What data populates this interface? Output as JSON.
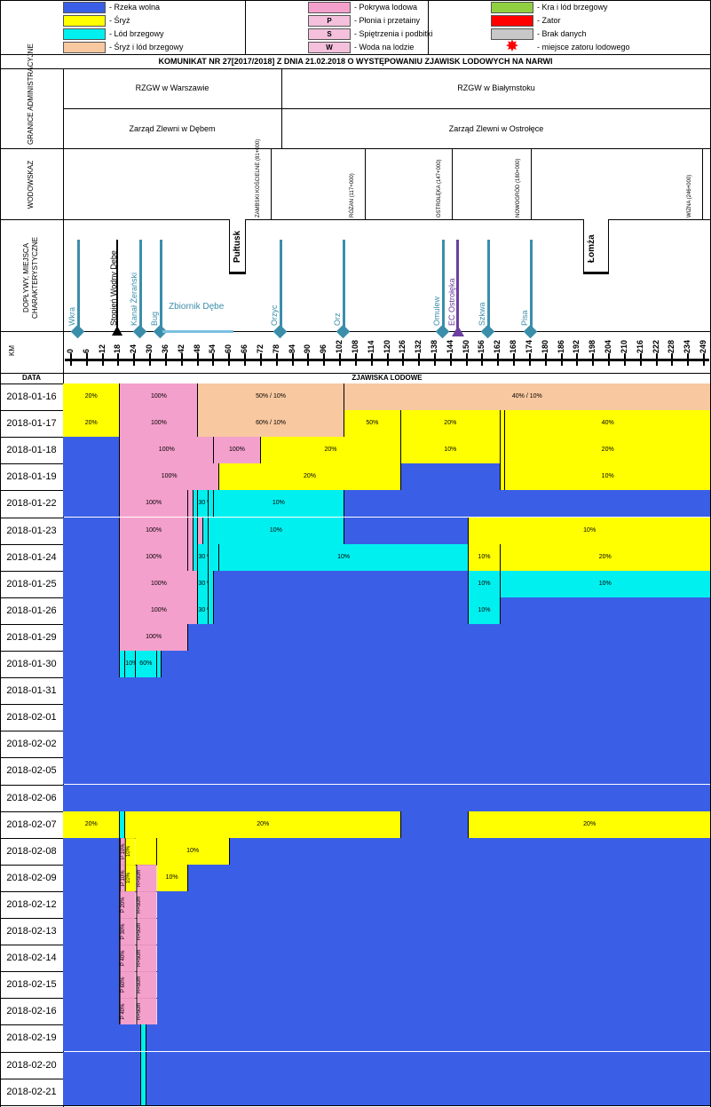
{
  "colors": {
    "free": "#3a5fe6",
    "frazil": "#ffff00",
    "shore": "#00f0f0",
    "frazil_shore": "#f8c8a0",
    "cover": "#f4a0cc",
    "floe": "#90d040",
    "jam": "#ff0000",
    "nodata": "#c8c8c8",
    "star": "#ff0000",
    "tributary": "#3b8eaa",
    "plant": "#6b3fa0"
  },
  "legend": [
    {
      "color_key": "free",
      "sym": "",
      "text": "- Rzeka wolna"
    },
    {
      "color_key": "frazil",
      "sym": "",
      "text": "- Śryż"
    },
    {
      "color_key": "shore",
      "sym": "",
      "text": "- Lód brzegowy"
    },
    {
      "color_key": "frazil_shore",
      "sym": "",
      "text": "- Śryż i lód brzegowy"
    },
    {
      "color_key": "cover",
      "sym": "",
      "text": "- Pokrywa lodowa"
    },
    {
      "color_key": "cover",
      "sym": "P",
      "text": "- Płonia i przetainy"
    },
    {
      "color_key": "cover",
      "sym": "S",
      "text": "- Spiętrzenia i podbitki"
    },
    {
      "color_key": "cover",
      "sym": "W",
      "text": "- Woda na lodzie"
    },
    {
      "color_key": "floe",
      "sym": "",
      "text": "- Kra i lód brzegowy"
    },
    {
      "color_key": "jam",
      "sym": "",
      "text": "- Zator"
    },
    {
      "color_key": "nodata",
      "sym": "",
      "text": "- Brak danych"
    },
    {
      "color_key": "star",
      "sym": "",
      "text": "- miejsce zatoru lodowego"
    }
  ],
  "title": "KOMUNIKAT NR 27[2017/2018] Z DNIA 21.02.2018 O WYSTĘPOWANIU ZJAWISK LODOWYCH NA NARWI",
  "section_labels": {
    "admin": "GRANICE ADMINISTRACYJNE",
    "gauges": "WODOWSKAZ",
    "tributaries": "DOPŁYWY, MIEJSCA CHARAKTERYSTYCZNE",
    "km": "KM",
    "data": "DATA",
    "phen": "ZJAWISKA LODOWE"
  },
  "admin": {
    "rzgw_left": "RZGW w Warszawie",
    "rzgw_right": "RZGW w Białymstoku",
    "zz_left": "Zarząd Zlewni w Dębem",
    "zz_right": "Zarząd Zlewni w Ostrołęce"
  },
  "gauges": [
    {
      "name": "ZAMBSKI KOŚCIELNE (81+000)",
      "km": 81
    },
    {
      "name": "RÓŻAN (117+000)",
      "km": 117
    },
    {
      "name": "OSTROŁĘKA (147+000)",
      "km": 147
    },
    {
      "name": "NOWOGRÓD (180+000)",
      "km": 180
    },
    {
      "name": "WIZNA (246+000)",
      "km": 246
    }
  ],
  "towns": [
    {
      "name": "Pułtusk",
      "km": 65
    },
    {
      "name": "Łomża",
      "km": 204
    }
  ],
  "tributaries": [
    {
      "name": "Wkra",
      "km": 3
    },
    {
      "name": "Kanał Żerański",
      "km": 29
    },
    {
      "name": "Bug",
      "km": 37
    },
    {
      "name": "Orzyc",
      "km": 84
    },
    {
      "name": "Orz",
      "km": 108
    },
    {
      "name": "Omulew",
      "km": 146
    },
    {
      "name": "Szkwa",
      "km": 164
    },
    {
      "name": "Pisa",
      "km": 180
    }
  ],
  "special": {
    "dam": {
      "name": "Stopień Wodny Dębe",
      "km": 21
    },
    "reservoir": {
      "name": "Zbiornik Dębe"
    },
    "plant": {
      "name": "EC Ostrołęka",
      "km": 152
    }
  },
  "km_axis": {
    "ticks": [
      "0",
      "6",
      "12",
      "18",
      "24",
      "30",
      "36",
      "42",
      "48",
      "54",
      "60",
      "66",
      "72",
      "78",
      "84",
      "90",
      "96",
      "102",
      "108",
      "114",
      "120",
      "126",
      "132",
      "138",
      "144",
      "150",
      "156",
      "162",
      "168",
      "174",
      "180",
      "186",
      "192",
      "198",
      "204",
      "210",
      "216",
      "222",
      "228",
      "234",
      "249"
    ],
    "max": 249
  },
  "rows": [
    {
      "date": "2018-01-16",
      "segs": [
        [
          "frazil",
          0,
          22,
          "20%"
        ],
        [
          "cover",
          22,
          52,
          "100%"
        ],
        [
          "frazil_shore",
          52,
          108,
          "50% / 10%"
        ],
        [
          "frazil_shore",
          108,
          249,
          "40% / 10%"
        ]
      ]
    },
    {
      "date": "2018-01-17",
      "segs": [
        [
          "frazil",
          0,
          22,
          "20%"
        ],
        [
          "cover",
          22,
          52,
          "100%"
        ],
        [
          "frazil_shore",
          52,
          108,
          "60% / 10%"
        ],
        [
          "frazil",
          108,
          130,
          "50%"
        ],
        [
          "frazil",
          130,
          168,
          "20%"
        ],
        [
          "frazil",
          168,
          170,
          ""
        ],
        [
          "frazil",
          170,
          249,
          "40%"
        ]
      ]
    },
    {
      "date": "2018-01-18",
      "segs": [
        [
          "free",
          0,
          22,
          ""
        ],
        [
          "cover",
          22,
          58,
          "100%"
        ],
        [
          "cover",
          58,
          76,
          "100%"
        ],
        [
          "frazil",
          76,
          130,
          "20%"
        ],
        [
          "frazil",
          130,
          168,
          "10%"
        ],
        [
          "frazil",
          168,
          170,
          ""
        ],
        [
          "frazil",
          170,
          249,
          "20%"
        ]
      ]
    },
    {
      "date": "2018-01-19",
      "segs": [
        [
          "free",
          0,
          22,
          ""
        ],
        [
          "cover",
          22,
          60,
          "100%"
        ],
        [
          "frazil",
          60,
          130,
          "20%"
        ],
        [
          "free",
          130,
          168,
          ""
        ],
        [
          "frazil",
          168,
          170,
          ""
        ],
        [
          "frazil",
          170,
          249,
          "10%"
        ]
      ]
    },
    {
      "date": "2018-01-22",
      "segs": [
        [
          "free",
          0,
          22,
          ""
        ],
        [
          "cover",
          22,
          48,
          "100%"
        ],
        [
          "cover",
          48,
          50,
          ""
        ],
        [
          "shore",
          50,
          52,
          ""
        ],
        [
          "shore",
          52,
          56,
          "30 %"
        ],
        [
          "shore",
          56,
          58,
          ""
        ],
        [
          "shore",
          58,
          108,
          "10%"
        ],
        [
          "free",
          108,
          249,
          ""
        ]
      ]
    },
    {
      "date": "2018-01-23",
      "segs": [
        [
          "free",
          0,
          22,
          ""
        ],
        [
          "cover",
          22,
          48,
          "100%"
        ],
        [
          "cover",
          48,
          50,
          ""
        ],
        [
          "shore",
          50,
          52,
          ""
        ],
        [
          "cover",
          52,
          54,
          ""
        ],
        [
          "shore",
          54,
          56,
          ""
        ],
        [
          "shore",
          56,
          108,
          "10%"
        ],
        [
          "free",
          108,
          156,
          ""
        ],
        [
          "frazil",
          156,
          249,
          "10%"
        ]
      ]
    },
    {
      "date": "2018-01-24",
      "segs": [
        [
          "free",
          0,
          22,
          ""
        ],
        [
          "cover",
          22,
          48,
          "100%"
        ],
        [
          "cover",
          48,
          50,
          ""
        ],
        [
          "shore",
          50,
          52,
          ""
        ],
        [
          "shore",
          52,
          56,
          "30 %"
        ],
        [
          "shore",
          56,
          60,
          ""
        ],
        [
          "shore",
          60,
          156,
          "10%"
        ],
        [
          "frazil",
          156,
          168,
          "10%"
        ],
        [
          "frazil",
          168,
          249,
          "20%"
        ]
      ]
    },
    {
      "date": "2018-01-25",
      "segs": [
        [
          "free",
          0,
          22,
          ""
        ],
        [
          "cover",
          22,
          52,
          "100%"
        ],
        [
          "shore",
          52,
          56,
          "30 %"
        ],
        [
          "shore",
          56,
          58,
          ""
        ],
        [
          "free",
          58,
          156,
          ""
        ],
        [
          "shore",
          156,
          168,
          "10%"
        ],
        [
          "shore",
          168,
          249,
          "10%"
        ]
      ]
    },
    {
      "date": "2018-01-26",
      "segs": [
        [
          "free",
          0,
          22,
          ""
        ],
        [
          "cover",
          22,
          52,
          "100%"
        ],
        [
          "shore",
          52,
          56,
          "30 %"
        ],
        [
          "shore",
          56,
          58,
          ""
        ],
        [
          "free",
          58,
          156,
          ""
        ],
        [
          "shore",
          156,
          168,
          "10%"
        ],
        [
          "free",
          168,
          249,
          ""
        ]
      ]
    },
    {
      "date": "2018-01-29",
      "segs": [
        [
          "free",
          0,
          22,
          ""
        ],
        [
          "cover",
          22,
          48,
          "100%"
        ],
        [
          "free",
          48,
          249,
          ""
        ]
      ]
    },
    {
      "date": "2018-01-30",
      "segs": [
        [
          "free",
          0,
          22,
          ""
        ],
        [
          "shore",
          22,
          24,
          ""
        ],
        [
          "shore",
          24,
          28,
          "10%"
        ],
        [
          "shore",
          28,
          36,
          "60%"
        ],
        [
          "shore",
          36,
          38,
          ""
        ],
        [
          "free",
          38,
          249,
          ""
        ]
      ]
    },
    {
      "date": "2018-01-31",
      "segs": [
        [
          "free",
          0,
          249,
          ""
        ]
      ]
    },
    {
      "date": "2018-02-01",
      "segs": [
        [
          "free",
          0,
          249,
          ""
        ]
      ]
    },
    {
      "date": "2018-02-02",
      "segs": [
        [
          "free",
          0,
          249,
          ""
        ]
      ]
    },
    {
      "date": "2018-02-05",
      "segs": [
        [
          "free",
          0,
          249,
          ""
        ]
      ]
    },
    {
      "date": "2018-02-06",
      "segs": [
        [
          "free",
          0,
          249,
          ""
        ]
      ]
    },
    {
      "date": "2018-02-07",
      "segs": [
        [
          "frazil",
          0,
          22,
          "20%"
        ],
        [
          "shore",
          22,
          24,
          ""
        ],
        [
          "frazil",
          24,
          130,
          "20%"
        ],
        [
          "free",
          130,
          156,
          ""
        ],
        [
          "frazil",
          156,
          249,
          "20%"
        ]
      ]
    },
    {
      "date": "2018-02-08",
      "segs": [
        [
          "free",
          0,
          22,
          ""
        ],
        [
          "cover",
          22,
          24,
          "P 10%",
          "v"
        ],
        [
          "frazil",
          24,
          28,
          "10%",
          "v"
        ],
        [
          "frazil",
          28,
          36,
          ""
        ],
        [
          "frazil",
          36,
          64,
          "10%"
        ],
        [
          "free",
          64,
          249,
          ""
        ]
      ]
    },
    {
      "date": "2018-02-09",
      "segs": [
        [
          "free",
          0,
          22,
          ""
        ],
        [
          "cover",
          22,
          24,
          "P 10%",
          "v"
        ],
        [
          "frazil",
          24,
          28,
          "10%",
          "v"
        ],
        [
          "cover",
          28,
          36,
          "R=50m",
          "v"
        ],
        [
          "frazil",
          36,
          48,
          "10%"
        ],
        [
          "free",
          48,
          249,
          ""
        ]
      ]
    },
    {
      "date": "2018-02-12",
      "segs": [
        [
          "free",
          0,
          22,
          ""
        ],
        [
          "cover",
          22,
          28,
          "P 20%",
          "v"
        ],
        [
          "cover",
          28,
          36,
          "R=50m",
          "v"
        ],
        [
          "free",
          36,
          249,
          ""
        ]
      ]
    },
    {
      "date": "2018-02-13",
      "segs": [
        [
          "free",
          0,
          22,
          ""
        ],
        [
          "cover",
          22,
          28,
          "P 30%",
          "v"
        ],
        [
          "cover",
          28,
          36,
          "R=50m",
          "v"
        ],
        [
          "free",
          36,
          249,
          ""
        ]
      ]
    },
    {
      "date": "2018-02-14",
      "segs": [
        [
          "free",
          0,
          22,
          ""
        ],
        [
          "cover",
          22,
          28,
          "P 40%",
          "v"
        ],
        [
          "cover",
          28,
          36,
          "R=50m",
          "v"
        ],
        [
          "free",
          36,
          249,
          ""
        ]
      ]
    },
    {
      "date": "2018-02-15",
      "segs": [
        [
          "free",
          0,
          22,
          ""
        ],
        [
          "cover",
          22,
          28,
          "P 60%",
          "v"
        ],
        [
          "cover",
          28,
          36,
          "R=50m",
          "v"
        ],
        [
          "free",
          36,
          249,
          ""
        ]
      ]
    },
    {
      "date": "2018-02-16",
      "segs": [
        [
          "free",
          0,
          22,
          ""
        ],
        [
          "cover",
          22,
          28,
          "P 40%",
          "v"
        ],
        [
          "cover",
          28,
          36,
          "R=50m",
          "v"
        ],
        [
          "free",
          36,
          249,
          ""
        ]
      ]
    },
    {
      "date": "2018-02-19",
      "segs": [
        [
          "free",
          0,
          30,
          ""
        ],
        [
          "shore",
          30,
          32,
          ""
        ],
        [
          "free",
          32,
          249,
          ""
        ]
      ]
    },
    {
      "date": "2018-02-20",
      "segs": [
        [
          "free",
          0,
          30,
          ""
        ],
        [
          "shore",
          30,
          32,
          ""
        ],
        [
          "free",
          32,
          249,
          ""
        ]
      ]
    },
    {
      "date": "2018-02-21",
      "segs": [
        [
          "free",
          0,
          30,
          ""
        ],
        [
          "shore",
          30,
          32,
          ""
        ],
        [
          "free",
          32,
          249,
          ""
        ]
      ]
    }
  ]
}
